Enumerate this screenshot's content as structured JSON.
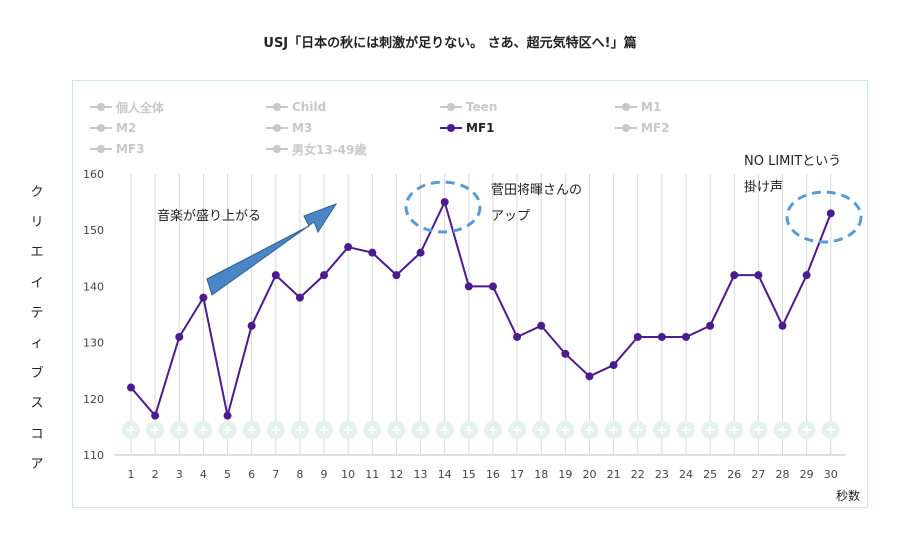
{
  "title": "USJ「日本の秋には刺激が足りない。 さあ、超元気特区へ!」篇",
  "ylabel_chars": [
    "ク",
    "リ",
    "エ",
    "イ",
    "テ",
    "ィ",
    "ブ",
    "ス",
    "コ",
    "ア"
  ],
  "annotations": {
    "music": "音楽が盛り上がる",
    "suda_line1": "菅田将暉さんの",
    "suda_line2": "アップ",
    "nolimit_line1": "NO LIMITという",
    "nolimit_line2": "掛け声"
  },
  "legend": [
    {
      "label": "個人全体",
      "active": false
    },
    {
      "label": "Child",
      "active": false
    },
    {
      "label": "Teen",
      "active": false
    },
    {
      "label": "M1",
      "active": false
    },
    {
      "label": "M2",
      "active": false
    },
    {
      "label": "M3",
      "active": false
    },
    {
      "label": "MF1",
      "active": true
    },
    {
      "label": "MF2",
      "active": false
    },
    {
      "label": "MF3",
      "active": false
    },
    {
      "label": "男女13-49歳",
      "active": false
    }
  ],
  "colors": {
    "series": "#4b1b8f",
    "grid": "#d9d9d9",
    "arrow_fill": "#4a86c5",
    "arrow_stroke": "#2f5f8f",
    "highlight_ellipse": "#5b9bd5",
    "plus_circle": "#e3f3ec",
    "frame": "#cfe9df"
  },
  "chart_data": {
    "type": "line",
    "title": "USJ「日本の秋には刺激が足りない。 さあ、超元気特区へ!」篇",
    "xlabel": "秒数",
    "ylabel": "クリエイティブスコア",
    "ylim": [
      110,
      160
    ],
    "yticks": [
      110,
      120,
      130,
      140,
      150,
      160
    ],
    "x": [
      1,
      2,
      3,
      4,
      5,
      6,
      7,
      8,
      9,
      10,
      11,
      12,
      13,
      14,
      15,
      16,
      17,
      18,
      19,
      20,
      21,
      22,
      23,
      24,
      25,
      26,
      27,
      28,
      29,
      30
    ],
    "series": [
      {
        "name": "MF1",
        "values": [
          122,
          117,
          131,
          138,
          117,
          133,
          142,
          138,
          142,
          147,
          146,
          142,
          146,
          155,
          140,
          140,
          131,
          133,
          128,
          124,
          126,
          131,
          131,
          131,
          133,
          142,
          142,
          133,
          142,
          153
        ]
      }
    ],
    "grid": true,
    "legend_position": "top"
  }
}
